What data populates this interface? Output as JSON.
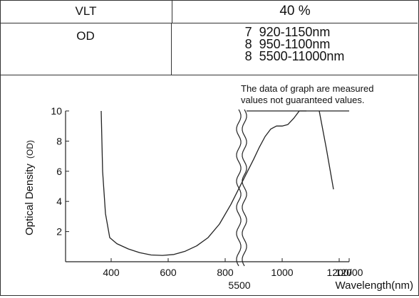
{
  "table": {
    "vlt_label": "VLT",
    "vlt_value": "40 %",
    "od_label": "OD",
    "od_items": [
      {
        "od": "7",
        "range": "920-1150nm"
      },
      {
        "od": "8",
        "range": "950-1100nm"
      },
      {
        "od": "8",
        "range": "5500-11000nm"
      }
    ]
  },
  "chart_data": {
    "type": "line",
    "note_line1": "The data of graph are measured",
    "note_line2": "values not guaranteed values.",
    "ylabel_main": "Optical Density",
    "ylabel_unit": "(OD)",
    "xlabel": "Wavelength(nm)",
    "y_ticks": [
      "2",
      "4",
      "6",
      "8",
      "10"
    ],
    "x_ticks": [
      "400",
      "600",
      "800",
      "1000",
      "1200/"
    ],
    "x_tick_break_lower": "5500",
    "x_tick_end": "12000",
    "ylim": [
      0,
      10
    ],
    "axis_break_between": [
      1200,
      5500
    ],
    "grid": false,
    "series": [
      {
        "segment": "visible-nir",
        "x": [
          365,
          370,
          380,
          395,
          420,
          460,
          500,
          540,
          580,
          620,
          660,
          700,
          740,
          780,
          820,
          860,
          900,
          920,
          940,
          960,
          980,
          1000,
          1020,
          1040,
          1060,
          1075,
          1085
        ],
        "y": [
          10,
          6.0,
          3.2,
          1.6,
          1.2,
          0.85,
          0.6,
          0.45,
          0.42,
          0.48,
          0.7,
          1.05,
          1.6,
          2.5,
          3.8,
          5.3,
          6.8,
          7.6,
          8.3,
          8.8,
          9.0,
          9.0,
          9.1,
          9.5,
          10,
          10,
          10
        ]
      },
      {
        "segment": "cutoff-edge",
        "x": [
          1130,
          1155,
          1180
        ],
        "y": [
          10,
          7.5,
          4.8
        ]
      },
      {
        "segment": "mid-ir",
        "x": [
          5500,
          12000
        ],
        "y": [
          10,
          10
        ]
      }
    ]
  }
}
